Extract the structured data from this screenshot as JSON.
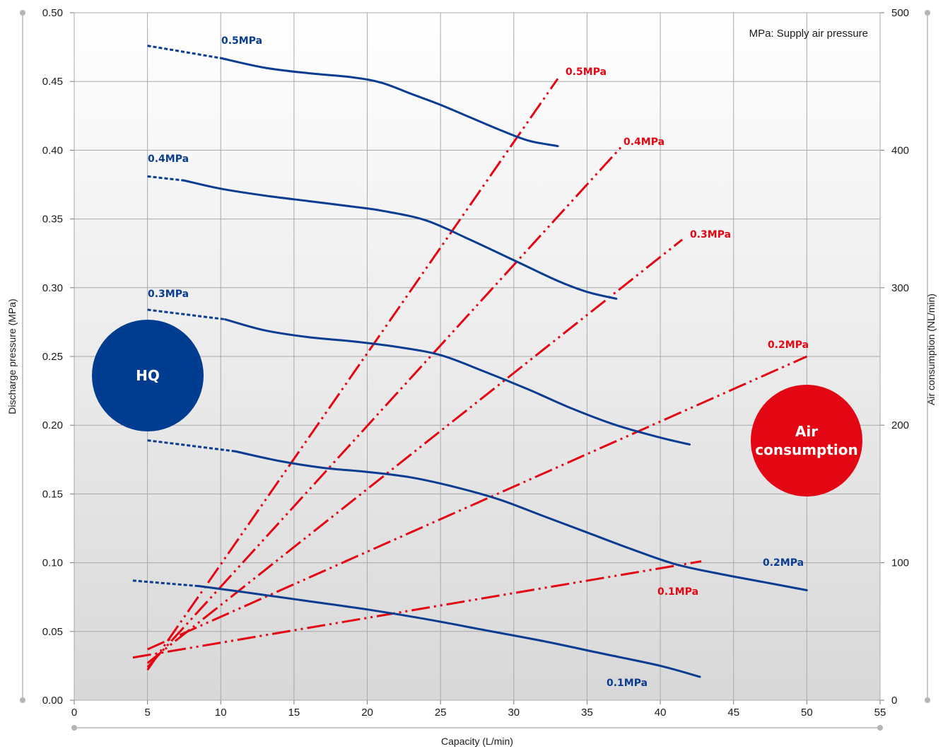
{
  "chart_data": {
    "type": "line",
    "xlabel": "Capacity (L/min)",
    "ylabel": "Discharge pressure (MPa)",
    "y2label": "Air consumption (NL/min)",
    "xlim": [
      0,
      55
    ],
    "ylim": [
      0,
      0.5
    ],
    "y2lim": [
      0,
      500
    ],
    "x_ticks": [
      0,
      5,
      10,
      15,
      20,
      25,
      30,
      35,
      40,
      45,
      50,
      55
    ],
    "y_ticks": [
      0,
      0.05,
      0.1,
      0.15,
      0.2,
      0.25,
      0.3,
      0.35,
      0.4,
      0.45,
      0.5
    ],
    "y_tick_labels": [
      "0.00",
      "0.05",
      "0.10",
      "0.15",
      "0.20",
      "0.25",
      "0.30",
      "0.35",
      "0.40",
      "0.45",
      "0.50"
    ],
    "y2_ticks": [
      0,
      100,
      200,
      300,
      400,
      500
    ],
    "grid": true,
    "note": "MPa: Supply air pressure",
    "colors": {
      "pressure": "#0a3d91",
      "air": "#e30613",
      "badge_hq": "#003c8f",
      "badge_air": "#e30613",
      "grid": "#a9a9a9",
      "bg_top": "#ffffff",
      "bg_bottom": "#d8d8d8"
    },
    "badges": {
      "hq": "HQ",
      "air_line1": "Air",
      "air_line2": "consumption"
    },
    "pressure_series": [
      {
        "name": "0.5MPa",
        "dotted": [
          [
            5,
            0.476
          ],
          [
            10,
            0.467
          ]
        ],
        "solid": [
          [
            10,
            0.467
          ],
          [
            13,
            0.46
          ],
          [
            16,
            0.456
          ],
          [
            19,
            0.453
          ],
          [
            21,
            0.449
          ],
          [
            23,
            0.441
          ],
          [
            25,
            0.433
          ],
          [
            27,
            0.424
          ],
          [
            29,
            0.415
          ],
          [
            31,
            0.407
          ],
          [
            33,
            0.403
          ]
        ]
      },
      {
        "name": "0.4MPa",
        "dotted": [
          [
            5,
            0.381
          ],
          [
            7.5,
            0.378
          ]
        ],
        "solid": [
          [
            7.5,
            0.378
          ],
          [
            10,
            0.372
          ],
          [
            13,
            0.367
          ],
          [
            16,
            0.363
          ],
          [
            19,
            0.359
          ],
          [
            21,
            0.356
          ],
          [
            24,
            0.349
          ],
          [
            27,
            0.335
          ],
          [
            30,
            0.32
          ],
          [
            33,
            0.305
          ],
          [
            35,
            0.297
          ],
          [
            37,
            0.292
          ]
        ]
      },
      {
        "name": "0.3MPa",
        "dotted": [
          [
            5,
            0.284
          ],
          [
            10.3,
            0.277
          ]
        ],
        "solid": [
          [
            10.3,
            0.277
          ],
          [
            13,
            0.269
          ],
          [
            16,
            0.264
          ],
          [
            19,
            0.261
          ],
          [
            22,
            0.257
          ],
          [
            25,
            0.251
          ],
          [
            28,
            0.239
          ],
          [
            31,
            0.226
          ],
          [
            34,
            0.212
          ],
          [
            37,
            0.2
          ],
          [
            40,
            0.191
          ],
          [
            42,
            0.186
          ]
        ]
      },
      {
        "name": "0.2MPa",
        "dotted": [
          [
            5,
            0.189
          ],
          [
            11,
            0.181
          ]
        ],
        "solid": [
          [
            11,
            0.181
          ],
          [
            14,
            0.174
          ],
          [
            17,
            0.169
          ],
          [
            20,
            0.166
          ],
          [
            23,
            0.162
          ],
          [
            26,
            0.155
          ],
          [
            29,
            0.146
          ],
          [
            32,
            0.134
          ],
          [
            35,
            0.122
          ],
          [
            38,
            0.11
          ],
          [
            41,
            0.099
          ],
          [
            44,
            0.092
          ],
          [
            47,
            0.086
          ],
          [
            50,
            0.08
          ]
        ]
      },
      {
        "name": "0.1MPa",
        "dotted": [
          [
            4,
            0.087
          ],
          [
            8.5,
            0.083
          ]
        ],
        "solid": [
          [
            8.5,
            0.083
          ],
          [
            12,
            0.078
          ],
          [
            16,
            0.072
          ],
          [
            20,
            0.066
          ],
          [
            24,
            0.059
          ],
          [
            28,
            0.051
          ],
          [
            32,
            0.043
          ],
          [
            36,
            0.034
          ],
          [
            40,
            0.025
          ],
          [
            42.7,
            0.017
          ]
        ]
      }
    ],
    "air_series": [
      {
        "name": "0.5MPa",
        "x": [
          5,
          33
        ],
        "y": [
          22,
          452
        ]
      },
      {
        "name": "0.4MPa",
        "x": [
          5,
          37.3
        ],
        "y": [
          24,
          402
        ]
      },
      {
        "name": "0.3MPa",
        "x": [
          5,
          41.5
        ],
        "y": [
          27,
          335
        ]
      },
      {
        "name": "0.2MPa",
        "x": [
          5,
          50
        ],
        "y": [
          37,
          250
        ]
      },
      {
        "name": "0.1MPa",
        "x": [
          4,
          42.8
        ],
        "y": [
          31,
          101
        ]
      }
    ]
  }
}
